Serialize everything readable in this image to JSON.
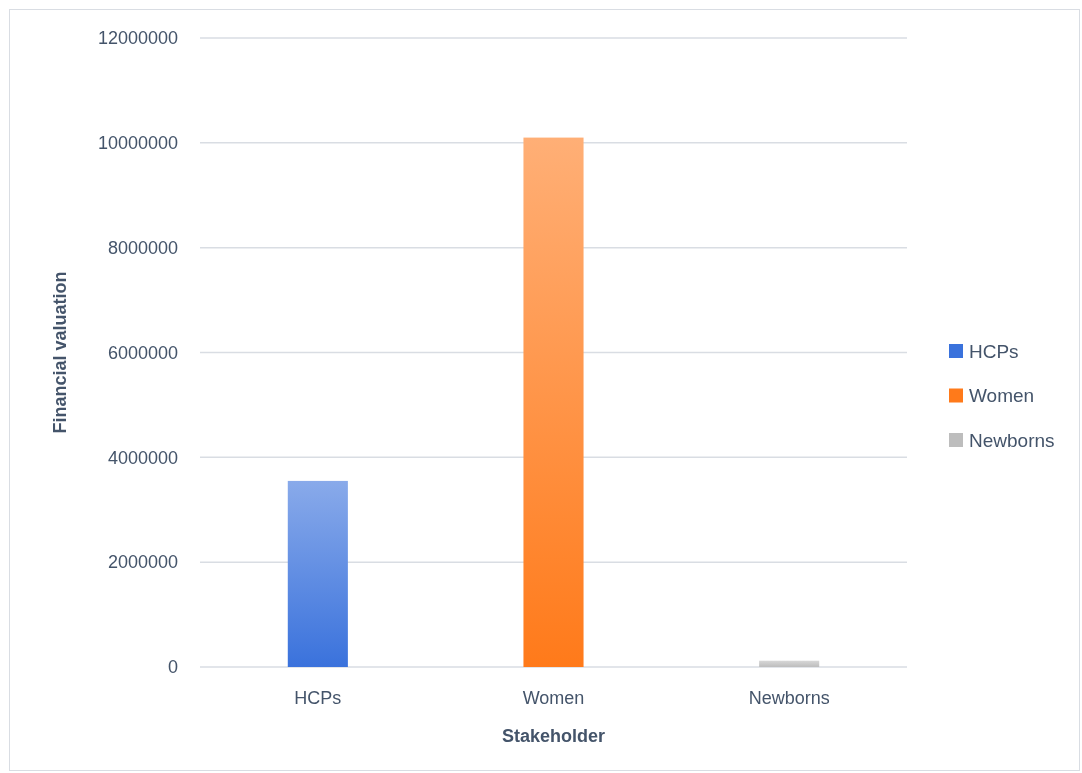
{
  "chart_data": {
    "type": "bar",
    "xlabel": "Stakeholder",
    "ylabel": "Financial valuation",
    "categories": [
      "HCPs",
      "Women",
      "Newborns"
    ],
    "series": [
      {
        "name": "HCPs",
        "color": "#3a72dc",
        "values": [
          3550000,
          null,
          null
        ]
      },
      {
        "name": "Women",
        "color": "#ff7a1a",
        "values": [
          null,
          10100000,
          null
        ]
      },
      {
        "name": "Newborns",
        "color": "#bdbdbd",
        "values": [
          null,
          null,
          120000
        ]
      }
    ],
    "ylim": [
      0,
      12000000
    ],
    "yticks": [
      0,
      2000000,
      4000000,
      6000000,
      8000000,
      10000000,
      12000000
    ],
    "grid": "y",
    "legend": "right"
  }
}
